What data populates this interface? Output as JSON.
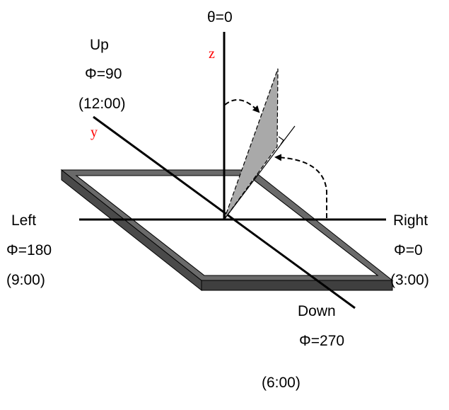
{
  "colors": {
    "axis_label": "#ff0000",
    "frame_top": "#6a6a6a",
    "frame_side": "#3f3f3f",
    "plane_fill": "#a9a9a9",
    "line": "#000000"
  },
  "labels": {
    "theta": "θ=0",
    "z_axis": "z",
    "y_axis": "y",
    "up": "Up",
    "up_phi": "Φ=90",
    "up_clock": "(12:00)",
    "left": "Left",
    "left_phi": "Φ=180",
    "left_clock": "(9:00)",
    "right": "Right",
    "right_phi": "Φ=0",
    "right_clock": "(3:00)",
    "down": "Down",
    "down_phi": "Φ=270",
    "down_clock": "(6:00)"
  }
}
